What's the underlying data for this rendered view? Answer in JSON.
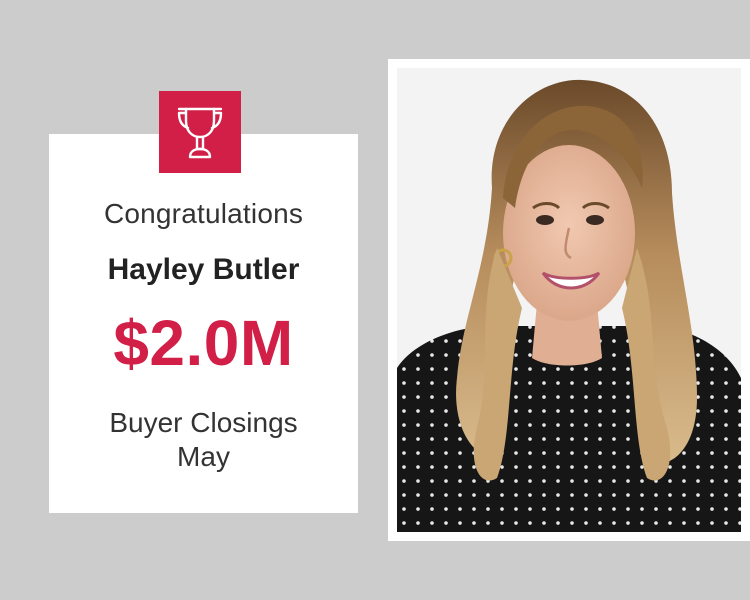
{
  "card": {
    "icon": "trophy-icon",
    "congrats": "Congratulations",
    "name": "Hayley Butler",
    "amount": "$2.0M",
    "description": "Buyer Closings",
    "month": "May"
  },
  "colors": {
    "background": "#cccccc",
    "accent": "#d11f48",
    "card": "#ffffff"
  },
  "photo": {
    "subject": "portrait-photo"
  }
}
